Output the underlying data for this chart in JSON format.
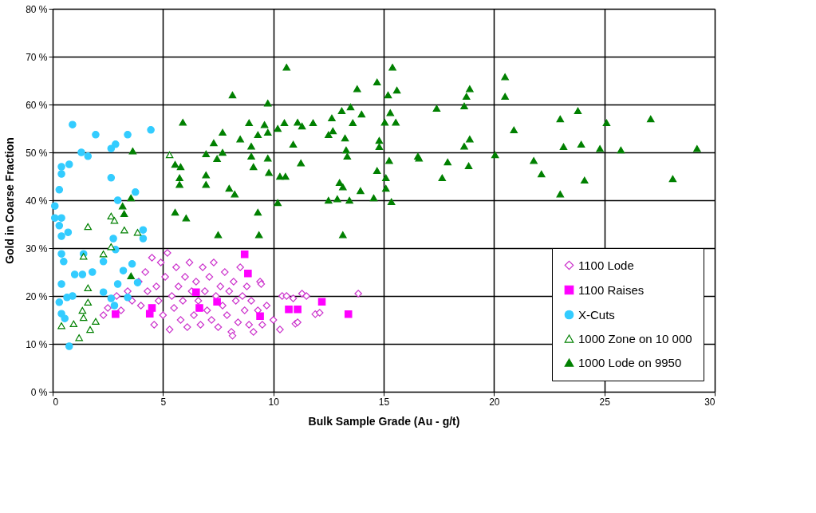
{
  "chart_data": {
    "type": "scatter",
    "xlabel": "Bulk Sample Grade (Au - g/t)",
    "ylabel": "Gold in Coarse Fraction",
    "xlim": [
      0,
      30
    ],
    "xticks": [
      0,
      5,
      10,
      15,
      20,
      25,
      30
    ],
    "ylim": [
      0,
      80
    ],
    "yticks": [
      {
        "value": 0,
        "label": "0 %"
      },
      {
        "value": 10,
        "label": "10 %"
      },
      {
        "value": 20,
        "label": "20 %"
      },
      {
        "value": 30,
        "label": "30 %"
      },
      {
        "value": 40,
        "label": "40 %"
      },
      {
        "value": 50,
        "label": "50 %"
      },
      {
        "value": 60,
        "label": "60 %"
      },
      {
        "value": 70,
        "label": "70 %"
      },
      {
        "value": 80,
        "label": "80 %"
      }
    ],
    "grid": true,
    "legend": "bottom right",
    "series": [
      {
        "name": "1100 Lode",
        "color": "#cc33cc",
        "marker": "diamond",
        "x": [
          2.3,
          2.5,
          2.9,
          3.1,
          3.4,
          3.6,
          3.9,
          4.0,
          4.2,
          4.3,
          4.5,
          4.6,
          4.7,
          4.8,
          4.9,
          5.0,
          5.1,
          5.2,
          5.3,
          5.4,
          5.5,
          5.6,
          5.7,
          5.8,
          5.9,
          6.0,
          6.1,
          6.2,
          6.3,
          6.4,
          6.5,
          6.6,
          6.7,
          6.8,
          6.9,
          7.0,
          7.1,
          7.2,
          7.3,
          7.4,
          7.5,
          7.6,
          7.7,
          7.8,
          7.9,
          8.0,
          8.1,
          8.2,
          8.3,
          8.4,
          8.5,
          8.6,
          8.7,
          8.8,
          8.9,
          9.0,
          9.1,
          9.3,
          9.4,
          9.5,
          9.7,
          10.0,
          10.3,
          10.4,
          10.6,
          10.9,
          11.0,
          11.1,
          11.3,
          11.5,
          11.9,
          12.1,
          13.85,
          8.15,
          9.45
        ],
        "values": [
          16,
          17.5,
          20,
          17,
          21,
          19,
          23,
          18,
          25,
          21,
          28,
          14,
          22,
          19,
          27,
          16,
          24,
          29,
          13,
          20,
          17.5,
          26,
          22,
          15,
          19,
          24,
          13.5,
          27,
          21,
          16,
          23,
          19,
          14,
          26,
          21,
          17,
          24,
          15,
          27,
          20,
          13.5,
          22,
          18,
          25,
          16,
          21,
          12.5,
          23,
          19,
          14.5,
          26,
          20,
          17,
          22,
          14,
          19,
          12.5,
          17,
          23,
          14,
          18,
          15,
          13,
          20,
          20,
          19.5,
          14.2,
          14.5,
          20.5,
          20,
          16.2,
          16.5,
          20.5,
          11.7,
          22.5
        ]
      },
      {
        "name": "1100 Raises",
        "color": "#ff00ff",
        "marker": "square",
        "x": [
          2.85,
          4.4,
          4.5,
          8.7,
          8.85,
          6.5,
          6.65,
          7.45,
          9.4,
          10.7,
          11.1,
          12.2,
          13.4
        ],
        "values": [
          16.2,
          16.3,
          17.5,
          28.7,
          24.7,
          20.8,
          17.5,
          18.8,
          15.8,
          17.2,
          17.2,
          18.8,
          16.2
        ]
      },
      {
        "name": "X-Cuts",
        "color": "#33ccff",
        "marker": "circle",
        "x": [
          0.9,
          1.95,
          3.4,
          4.45,
          2.65,
          2.85,
          1.3,
          1.6,
          0.75,
          0.4,
          0.4,
          2.65,
          0.3,
          3.75,
          2.95,
          0.1,
          0.1,
          0.4,
          0.3,
          0.7,
          0.4,
          4.1,
          4.1,
          2.75,
          2.85,
          0.4,
          0.5,
          1.4,
          2.3,
          3.6,
          1.0,
          1.35,
          1.8,
          3.2,
          2.95,
          3.85,
          0.4,
          0.65,
          0.3,
          0.9,
          2.3,
          3.4,
          2.65,
          2.8,
          0.4,
          0.55,
          null,
          0.75
        ],
        "values": [
          55.8,
          53.7,
          53.7,
          54.7,
          50.8,
          51.7,
          50,
          49.2,
          47.5,
          47,
          45.5,
          44.7,
          42.2,
          41.7,
          40,
          38.8,
          36.3,
          36.3,
          34.7,
          33.3,
          32.5,
          33.8,
          32,
          32,
          29.7,
          28.8,
          27.2,
          28.8,
          27.2,
          26.7,
          24.5,
          24.5,
          25,
          25.3,
          22.5,
          22.8,
          22.5,
          19.7,
          18.7,
          20,
          20.8,
          19.7,
          19.5,
          18,
          16.3,
          15.3,
          null,
          9.5
        ]
      },
      {
        "name": "1000 Zone on 10 000",
        "color": "#008000",
        "marker": "triangle",
        "x": [
          1.6,
          2.65,
          2.8,
          3.25,
          3.85,
          2.65,
          2.3,
          1.4,
          1.6,
          1.6,
          1.35,
          1.4,
          1.95,
          1.7,
          0.95,
          0.4,
          1.2,
          5.3
        ],
        "values": [
          34.5,
          36.7,
          35.8,
          33.8,
          33.3,
          30.3,
          28.8,
          28.3,
          21.7,
          18.7,
          17,
          15.5,
          14.7,
          13,
          14.2,
          13.8,
          11.3,
          49.5
        ]
      },
      {
        "name": "1000 Lode on 9950",
        "color": "#008000",
        "marker": "triangle",
        "x": [
          3.63,
          3.55,
          3.17,
          3.24,
          3.55,
          10.6,
          8.15,
          9.75,
          5.9,
          8.9,
          9.6,
          10.2,
          10.5,
          11.1,
          11.3,
          11.8,
          7.7,
          7.3,
          8.5,
          9.3,
          9.75,
          9.0,
          10.9,
          6.95,
          7.7,
          7.45,
          9.0,
          9.75,
          5.55,
          5.8,
          9.1,
          9.8,
          11.25,
          5.75,
          5.75,
          6.95,
          6.95,
          10.3,
          10.55,
          8.0,
          8.25,
          10.2,
          5.55,
          6.05,
          9.3,
          7.5,
          9.35,
          12.65,
          13.1,
          13.5,
          14.0,
          13.6,
          13.8,
          14.7,
          15.4,
          15.6,
          15.2,
          15.3,
          15.05,
          15.55,
          12.5,
          12.7,
          13.25,
          13.3,
          13.35,
          14.8,
          14.8,
          15.25,
          16.55,
          14.7,
          15.1,
          15.1,
          13.0,
          13.15,
          13.95,
          12.5,
          12.9,
          13.45,
          14.55,
          15.35,
          13.15,
          20.5,
          20.5,
          18.9,
          18.75,
          18.65,
          17.4,
          20.9,
          23.0,
          23.8,
          25.1,
          27.1,
          18.9,
          18.65,
          23.15,
          23.95,
          24.8,
          25.75,
          29.2,
          20.05,
          16.6,
          17.9,
          18.85,
          17.65,
          21.8,
          22.15,
          24.1,
          23.0,
          28.1
        ],
        "values": [
          50.3,
          40.5,
          38.8,
          37.2,
          24.2,
          67.8,
          62,
          60.3,
          56.3,
          56.2,
          55.8,
          55,
          56.2,
          56.3,
          55.5,
          56.2,
          54.2,
          52,
          52.8,
          53.7,
          54.2,
          51.3,
          51.7,
          49.7,
          50,
          48.7,
          49.2,
          48.8,
          47.5,
          47,
          47,
          45.8,
          47.8,
          44.7,
          43.3,
          45.3,
          43.3,
          45,
          45,
          42.5,
          41.3,
          39.5,
          37.5,
          36.3,
          37.5,
          32.8,
          32.8,
          57.2,
          58.7,
          59.5,
          58,
          56.2,
          63.3,
          64.7,
          67.8,
          63,
          62,
          58.3,
          56.3,
          56.3,
          53.7,
          54.5,
          53,
          50.5,
          49.2,
          52.5,
          51.2,
          48.3,
          49.2,
          46.2,
          44.7,
          42.5,
          43.7,
          42.8,
          42,
          40,
          40.3,
          40,
          40.5,
          39.7,
          32.8,
          65.8,
          61.7,
          63.3,
          61.7,
          59.7,
          59.2,
          54.7,
          57,
          58.7,
          56.2,
          57,
          52.8,
          51.3,
          51.2,
          51.7,
          50.8,
          50.5,
          50.8,
          49.5,
          48.8,
          48,
          47.2,
          44.7,
          48.3,
          45.5,
          44.2,
          41.3,
          44.5
        ]
      }
    ]
  }
}
